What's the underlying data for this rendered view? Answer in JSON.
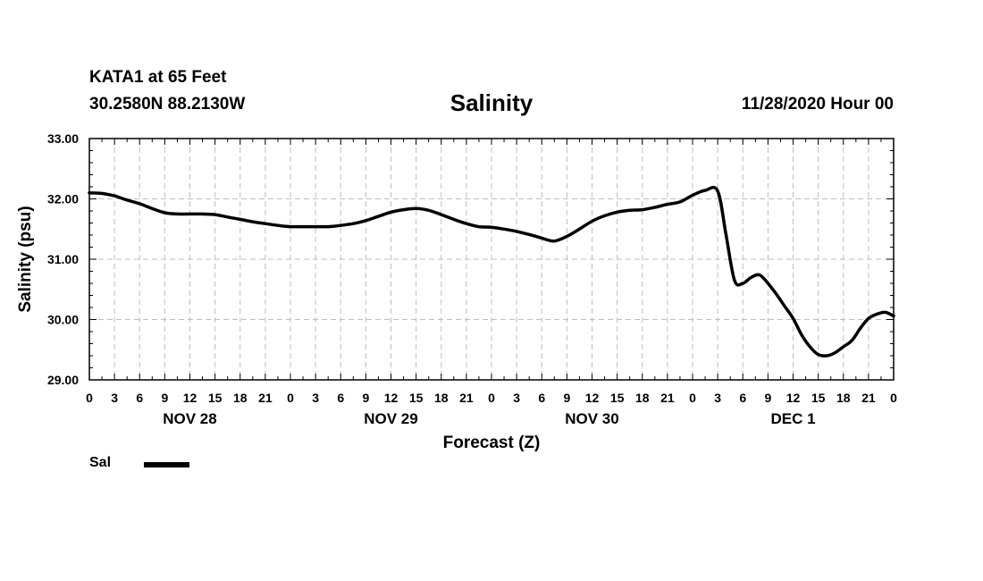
{
  "header": {
    "station": "KATA1 at 65 Feet",
    "coords": "30.2580N 88.2130W",
    "title": "Salinity",
    "issued": "11/28/2020 Hour 00"
  },
  "chart_data": {
    "type": "line",
    "title": "Salinity",
    "xlabel": "Forecast (Z)",
    "ylabel": "Salinity (psu)",
    "ylim": [
      29.0,
      33.0
    ],
    "y_ticks": [
      "29.00",
      "30.00",
      "31.00",
      "32.00",
      "33.00"
    ],
    "xlim": [
      0,
      96
    ],
    "x_unit": "hours from 11/28/2020 00Z",
    "x_tick_labels": [
      "0",
      "3",
      "6",
      "9",
      "12",
      "15",
      "18",
      "21",
      "0",
      "3",
      "6",
      "9",
      "12",
      "15",
      "18",
      "21",
      "0",
      "3",
      "6",
      "9",
      "12",
      "15",
      "18",
      "21",
      "0",
      "3",
      "6",
      "9",
      "12",
      "15",
      "18",
      "21",
      "0"
    ],
    "day_labels": [
      "NOV 28",
      "NOV 29",
      "NOV 30",
      "DEC 1"
    ],
    "grid": true,
    "legend_position": "bottom-left",
    "series": [
      {
        "name": "Sal",
        "color": "#000000",
        "x": [
          0,
          1.5,
          3,
          4.5,
          6,
          7.5,
          9,
          10.5,
          12,
          13.5,
          15,
          16.5,
          18,
          19.5,
          21,
          22.5,
          24,
          25.5,
          27,
          28.5,
          30,
          31.5,
          33,
          34.5,
          36,
          37.5,
          39,
          40.5,
          42,
          43.5,
          45,
          46.5,
          48,
          49.5,
          51,
          52.5,
          54,
          55.5,
          57,
          58.5,
          60,
          61.5,
          63,
          64.5,
          66,
          67.5,
          69,
          70.5,
          72,
          73.5,
          75,
          76,
          77,
          78,
          79,
          80,
          81,
          82,
          83,
          84,
          85,
          86,
          87,
          88,
          89,
          90,
          91,
          92,
          93,
          94,
          95,
          96
        ],
        "values": [
          32.1,
          32.09,
          32.05,
          31.98,
          31.92,
          31.84,
          31.77,
          31.75,
          31.75,
          31.75,
          31.74,
          31.7,
          31.66,
          31.62,
          31.59,
          31.56,
          31.54,
          31.54,
          31.54,
          31.54,
          31.56,
          31.59,
          31.64,
          31.71,
          31.78,
          31.82,
          31.84,
          31.81,
          31.74,
          31.66,
          31.59,
          31.54,
          31.53,
          31.5,
          31.46,
          31.41,
          31.35,
          31.3,
          31.38,
          31.5,
          31.63,
          31.72,
          31.78,
          31.81,
          31.82,
          31.86,
          31.91,
          31.95,
          32.06,
          32.14,
          32.13,
          31.4,
          30.65,
          30.6,
          30.7,
          30.74,
          30.6,
          30.42,
          30.22,
          30.02,
          29.75,
          29.55,
          29.42,
          29.4,
          29.45,
          29.55,
          29.65,
          29.85,
          30.02,
          30.09,
          30.12,
          30.06
        ]
      }
    ]
  }
}
